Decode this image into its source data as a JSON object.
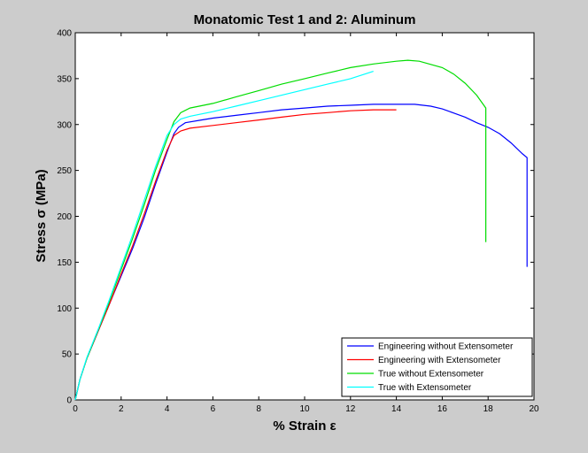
{
  "chart_data": {
    "type": "line",
    "title": "Monatomic Test 1 and 2: Aluminum",
    "xlabel": "% Strain ε",
    "ylabel": "Stress σ (MPa)",
    "xlim": [
      0,
      20
    ],
    "ylim": [
      0,
      400
    ],
    "xticks": [
      "0",
      "2",
      "4",
      "6",
      "8",
      "10",
      "12",
      "14",
      "16",
      "18",
      "20"
    ],
    "yticks": [
      "0",
      "50",
      "100",
      "150",
      "200",
      "250",
      "300",
      "350",
      "400"
    ],
    "grid": false,
    "legend_position": "bottom-right",
    "series": [
      {
        "name": "Engineering without Extensometer",
        "color": "#0000ff",
        "points": [
          [
            0,
            0
          ],
          [
            0.2,
            22
          ],
          [
            0.5,
            45
          ],
          [
            1,
            75
          ],
          [
            1.5,
            105
          ],
          [
            2,
            135
          ],
          [
            2.5,
            165
          ],
          [
            3,
            198
          ],
          [
            3.5,
            235
          ],
          [
            4,
            270
          ],
          [
            4.3,
            290
          ],
          [
            4.5,
            297
          ],
          [
            4.8,
            302
          ],
          [
            5.5,
            305
          ],
          [
            6,
            307
          ],
          [
            7,
            310
          ],
          [
            8,
            313
          ],
          [
            9,
            316
          ],
          [
            10,
            318
          ],
          [
            11,
            320
          ],
          [
            12,
            321
          ],
          [
            13,
            322
          ],
          [
            14,
            322
          ],
          [
            14.8,
            322
          ],
          [
            15.5,
            320
          ],
          [
            16,
            317
          ],
          [
            17,
            308
          ],
          [
            17.5,
            302
          ],
          [
            18,
            297
          ],
          [
            18.5,
            290
          ],
          [
            19,
            280
          ],
          [
            19.5,
            268
          ],
          [
            19.7,
            264
          ],
          [
            19.7,
            145
          ]
        ]
      },
      {
        "name": "Engineering with Extensometer",
        "color": "#ff0000",
        "points": [
          [
            0,
            0
          ],
          [
            0.2,
            22
          ],
          [
            0.5,
            45
          ],
          [
            1,
            75
          ],
          [
            1.5,
            105
          ],
          [
            2,
            137
          ],
          [
            2.5,
            168
          ],
          [
            3,
            202
          ],
          [
            3.5,
            238
          ],
          [
            4,
            272
          ],
          [
            4.3,
            288
          ],
          [
            4.6,
            293
          ],
          [
            5,
            296
          ],
          [
            6,
            299
          ],
          [
            7,
            302
          ],
          [
            8,
            305
          ],
          [
            9,
            308
          ],
          [
            10,
            311
          ],
          [
            11,
            313
          ],
          [
            12,
            315
          ],
          [
            13,
            316
          ],
          [
            14,
            316
          ]
        ]
      },
      {
        "name": "True without Extensometer",
        "color": "#00dd00",
        "points": [
          [
            0,
            0
          ],
          [
            0.2,
            22
          ],
          [
            0.5,
            45
          ],
          [
            1,
            76
          ],
          [
            1.5,
            108
          ],
          [
            2,
            142
          ],
          [
            2.5,
            176
          ],
          [
            3,
            212
          ],
          [
            3.5,
            250
          ],
          [
            4,
            284
          ],
          [
            4.3,
            303
          ],
          [
            4.6,
            313
          ],
          [
            5,
            318
          ],
          [
            6,
            323
          ],
          [
            7,
            330
          ],
          [
            8,
            337
          ],
          [
            9,
            344
          ],
          [
            10,
            350
          ],
          [
            11,
            356
          ],
          [
            12,
            362
          ],
          [
            13,
            366
          ],
          [
            14,
            369
          ],
          [
            14.5,
            370
          ],
          [
            15,
            369
          ],
          [
            16,
            362
          ],
          [
            16.5,
            355
          ],
          [
            17,
            345
          ],
          [
            17.5,
            332
          ],
          [
            17.9,
            318
          ],
          [
            17.9,
            172
          ]
        ]
      },
      {
        "name": "True with Extensometer",
        "color": "#00ffff",
        "points": [
          [
            0,
            0
          ],
          [
            0.2,
            22
          ],
          [
            0.5,
            46
          ],
          [
            1,
            77
          ],
          [
            1.5,
            110
          ],
          [
            2,
            145
          ],
          [
            2.5,
            180
          ],
          [
            3,
            217
          ],
          [
            3.5,
            254
          ],
          [
            4,
            288
          ],
          [
            4.3,
            300
          ],
          [
            4.6,
            306
          ],
          [
            5,
            309
          ],
          [
            6,
            314
          ],
          [
            7,
            320
          ],
          [
            8,
            326
          ],
          [
            9,
            332
          ],
          [
            10,
            338
          ],
          [
            11,
            344
          ],
          [
            12,
            350
          ],
          [
            13,
            358
          ]
        ]
      }
    ]
  }
}
